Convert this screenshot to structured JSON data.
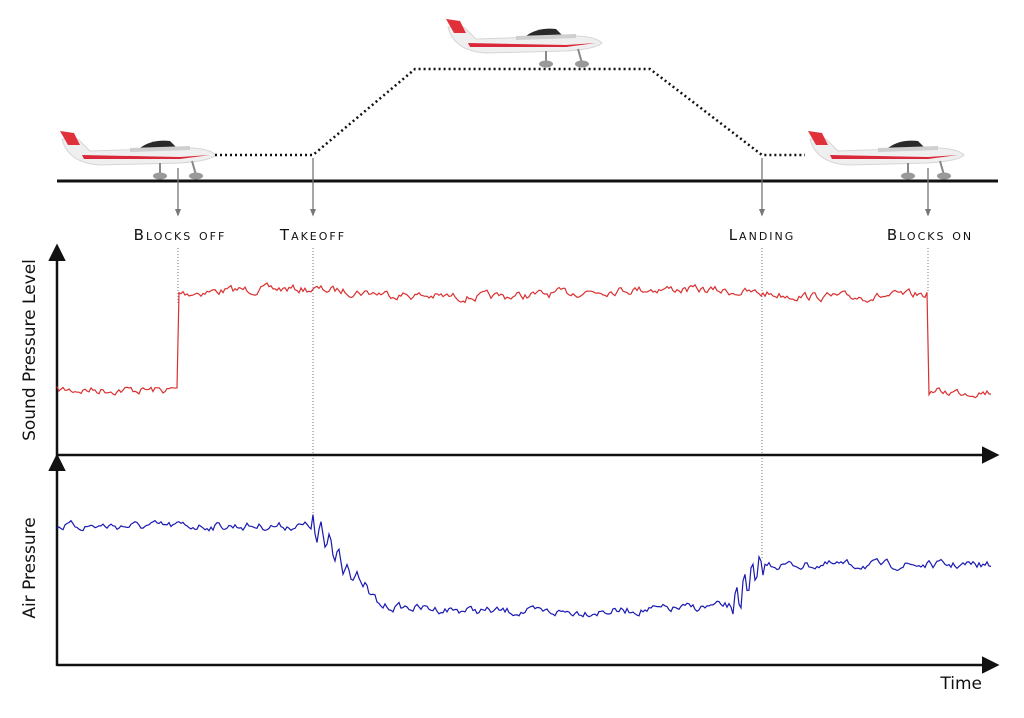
{
  "events": [
    {
      "label": "Blocks off"
    },
    {
      "label": "Takeoff"
    },
    {
      "label": "Landing"
    },
    {
      "label": "Blocks on"
    }
  ],
  "axes": {
    "top_y_label": "Sound Pressure Level",
    "bottom_y_label": "Air Pressure",
    "x_label": "Time"
  }
}
